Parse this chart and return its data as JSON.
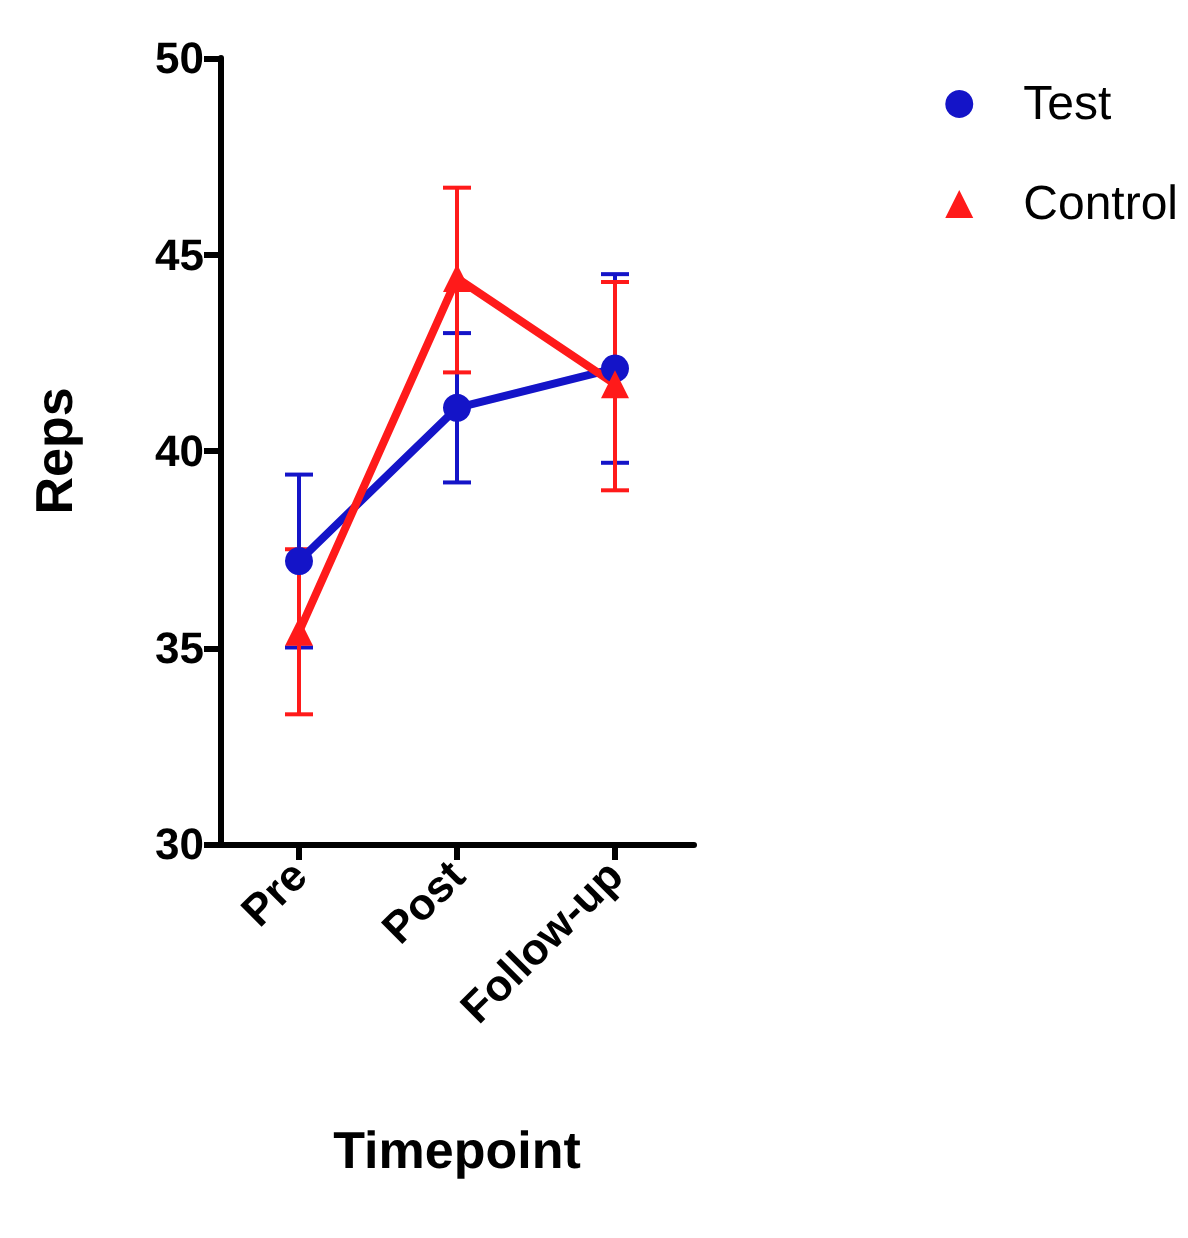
{
  "chart_data": {
    "type": "line",
    "xlabel": "Timepoint",
    "ylabel": "Reps",
    "categories": [
      "Pre",
      "Post",
      "Follow-up"
    ],
    "ylim": [
      30,
      50
    ],
    "yticks": [
      30,
      35,
      40,
      45,
      50
    ],
    "grid": false,
    "legend": "top right",
    "series": [
      {
        "name": "Test",
        "color": "#1414c8",
        "marker": "circle",
        "values": [
          37.2,
          41.1,
          42.1
        ],
        "errors": [
          [
            35.0,
            39.4
          ],
          [
            39.2,
            43.0
          ],
          [
            39.7,
            44.5
          ]
        ]
      },
      {
        "name": "Control",
        "color": "#ff1a1a",
        "marker": "triangle",
        "values": [
          35.4,
          44.4,
          41.7
        ],
        "errors": [
          [
            33.3,
            37.5
          ],
          [
            42.0,
            46.7
          ],
          [
            39.0,
            44.3
          ]
        ]
      }
    ]
  }
}
